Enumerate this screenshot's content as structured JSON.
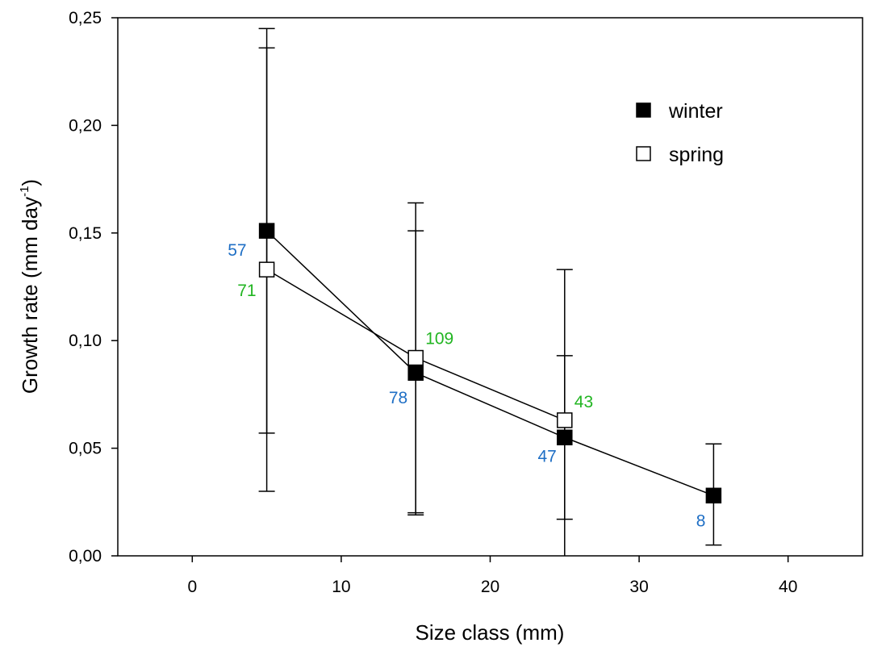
{
  "chart_data": {
    "type": "scatter",
    "xlabel": "Size class (mm)",
    "ylabel": "Growth rate (mm day-1)",
    "ylabel_main": "Growth rate (mm day",
    "ylabel_sup": "-1",
    "ylabel_close": ")",
    "xlim": [
      -5,
      45
    ],
    "ylim": [
      0,
      0.25
    ],
    "xticks": [
      0,
      10,
      20,
      30,
      40
    ],
    "xtick_labels": [
      "0",
      "10",
      "20",
      "30",
      "40"
    ],
    "yticks": [
      0,
      0.05,
      0.1,
      0.15,
      0.2,
      0.25
    ],
    "ytick_labels": [
      "0,00",
      "0,05",
      "0,10",
      "0,15",
      "0,20",
      "0,25"
    ],
    "grid": false,
    "legend_position": "top-right",
    "series": [
      {
        "name": "winter",
        "marker": "filled-square",
        "color": "#000000",
        "label_color": "#1f6fc5",
        "points": [
          {
            "x": 5,
            "y": 0.151,
            "lo": 0.057,
            "hi": 0.245,
            "n": "57"
          },
          {
            "x": 15,
            "y": 0.085,
            "lo": 0.019,
            "hi": 0.151,
            "n": "78"
          },
          {
            "x": 25,
            "y": 0.055,
            "lo": -0.007,
            "hi": 0.093,
            "n": "47"
          },
          {
            "x": 35,
            "y": 0.028,
            "lo": 0.005,
            "hi": 0.052,
            "n": "8"
          }
        ]
      },
      {
        "name": "spring",
        "marker": "open-square",
        "color": "#000000",
        "label_color": "#22b522",
        "points": [
          {
            "x": 5,
            "y": 0.133,
            "lo": 0.03,
            "hi": 0.236,
            "n": "71"
          },
          {
            "x": 15,
            "y": 0.092,
            "lo": 0.02,
            "hi": 0.164,
            "n": "109"
          },
          {
            "x": 25,
            "y": 0.063,
            "lo": 0.017,
            "hi": 0.133,
            "n": "43"
          }
        ]
      }
    ]
  }
}
